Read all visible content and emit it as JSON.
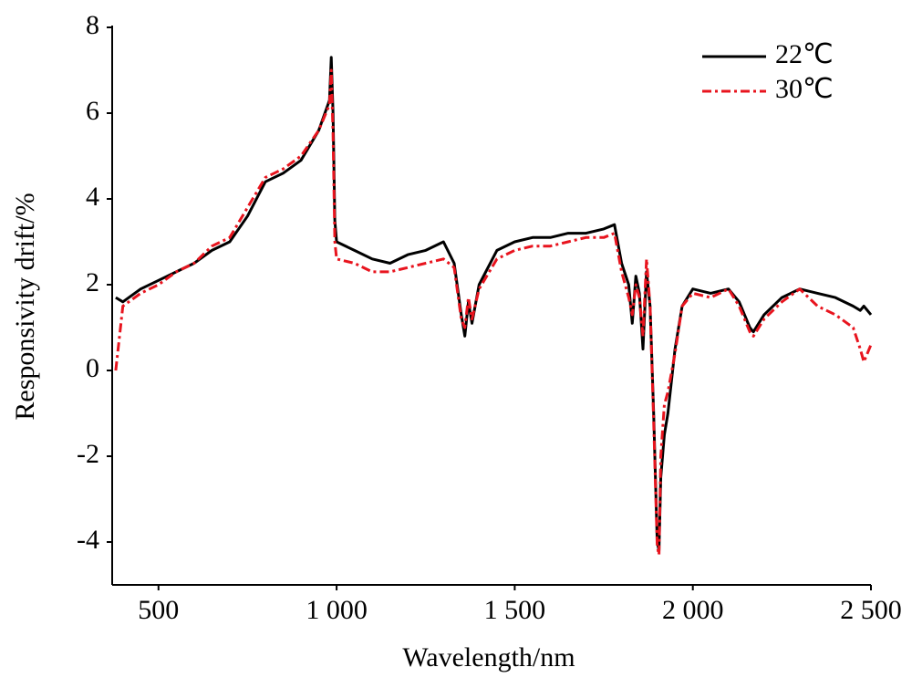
{
  "chart_data": {
    "type": "line",
    "xlabel": "Wavelength/nm",
    "ylabel": "Responsivity drift/%",
    "x": [
      380,
      400,
      450,
      500,
      550,
      600,
      650,
      700,
      750,
      800,
      850,
      900,
      950,
      980,
      985,
      990,
      995,
      1000,
      1050,
      1100,
      1150,
      1200,
      1250,
      1300,
      1330,
      1350,
      1360,
      1370,
      1380,
      1400,
      1450,
      1500,
      1550,
      1600,
      1650,
      1700,
      1750,
      1780,
      1800,
      1820,
      1830,
      1840,
      1850,
      1860,
      1870,
      1880,
      1890,
      1900,
      1905,
      1910,
      1920,
      1930,
      1950,
      1970,
      2000,
      2050,
      2100,
      2130,
      2160,
      2170,
      2200,
      2250,
      2300,
      2350,
      2400,
      2450,
      2470,
      2480,
      2500
    ],
    "series": [
      {
        "name": "22℃",
        "color": "#000000",
        "linestyle": "solid",
        "values": [
          1.7,
          1.6,
          1.9,
          2.1,
          2.3,
          2.5,
          2.8,
          3.0,
          3.6,
          4.4,
          4.6,
          4.9,
          5.6,
          6.3,
          7.3,
          6.0,
          3.5,
          3.0,
          2.8,
          2.6,
          2.5,
          2.7,
          2.8,
          3.0,
          2.5,
          1.3,
          0.8,
          1.6,
          1.1,
          2.0,
          2.8,
          3.0,
          3.1,
          3.1,
          3.2,
          3.2,
          3.3,
          3.4,
          2.5,
          2.0,
          1.1,
          2.2,
          1.8,
          0.5,
          2.3,
          1.5,
          -1.0,
          -4.0,
          -4.2,
          -2.5,
          -1.5,
          -1.0,
          0.5,
          1.5,
          1.9,
          1.8,
          1.9,
          1.6,
          1.0,
          0.9,
          1.3,
          1.7,
          1.9,
          1.8,
          1.7,
          1.5,
          1.4,
          1.5,
          1.3
        ]
      },
      {
        "name": "30℃",
        "color": "#e8141e",
        "linestyle": "dashdot",
        "values": [
          0.0,
          1.5,
          1.8,
          2.0,
          2.3,
          2.5,
          2.9,
          3.1,
          3.8,
          4.5,
          4.7,
          5.0,
          5.6,
          6.2,
          7.0,
          5.5,
          3.0,
          2.6,
          2.5,
          2.3,
          2.3,
          2.4,
          2.5,
          2.6,
          2.4,
          1.2,
          1.0,
          1.7,
          1.2,
          1.9,
          2.6,
          2.8,
          2.9,
          2.9,
          3.0,
          3.1,
          3.1,
          3.2,
          2.3,
          1.7,
          1.3,
          2.0,
          1.7,
          0.8,
          2.6,
          1.5,
          -1.2,
          -4.1,
          -4.3,
          -2.0,
          -0.8,
          -0.5,
          0.4,
          1.5,
          1.8,
          1.7,
          1.9,
          1.5,
          0.9,
          0.8,
          1.2,
          1.6,
          1.9,
          1.5,
          1.3,
          1.0,
          0.5,
          0.2,
          0.6
        ]
      }
    ],
    "xlim": [
      370,
      2500
    ],
    "xticks": [
      500,
      {
        "value": 1000,
        "label": "1 000"
      },
      {
        "value": 1500,
        "label": "1 500"
      },
      {
        "value": 2000,
        "label": "2 000"
      },
      {
        "value": 2500,
        "label": "2 500"
      }
    ],
    "ylim": [
      -5,
      8
    ],
    "yticks": [
      -4,
      -2,
      0,
      2,
      4,
      6,
      8
    ],
    "grid": false,
    "legend": "upper right"
  }
}
